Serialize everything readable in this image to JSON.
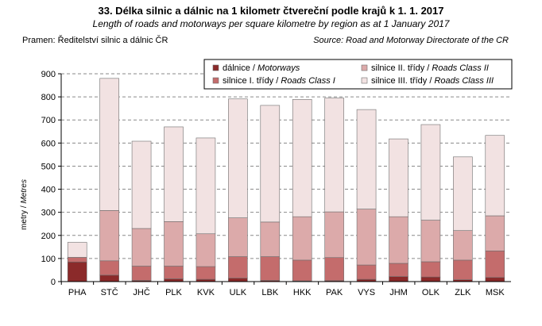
{
  "header": {
    "title": "33. Délka silnic a dálnic na 1 kilometr čtvereční podle krajů k 1. 1. 2017",
    "subtitle": "Length of roads and motorways per square kilometre by region as at 1 January 2017",
    "source_left": "Pramen: Ředitelství silnic a dálnic ČR",
    "source_right": "Source: Road and Motorway Directorate of the CR"
  },
  "chart_data": {
    "type": "bar",
    "stacked": true,
    "categories": [
      "PHA",
      "STČ",
      "JHČ",
      "PLK",
      "KVK",
      "ULK",
      "LBK",
      "HKK",
      "PAK",
      "VYS",
      "JHM",
      "OLK",
      "ZLK",
      "MSK"
    ],
    "series": [
      {
        "name": "dálnice",
        "name_en": "Motorways",
        "color": "#8b2a2a",
        "values": [
          85,
          28,
          5,
          12,
          10,
          15,
          5,
          3,
          4,
          10,
          22,
          20,
          8,
          18
        ]
      },
      {
        "name": "silnice I. třídy",
        "name_en": "Roads Class I",
        "color": "#c46c6c",
        "values": [
          20,
          62,
          62,
          55,
          55,
          93,
          103,
          90,
          100,
          62,
          57,
          66,
          85,
          115
        ]
      },
      {
        "name": "silnice II. třídy",
        "name_en": "Roads Class II",
        "color": "#dcaaaa",
        "values": [
          0,
          218,
          163,
          193,
          142,
          168,
          150,
          188,
          198,
          242,
          202,
          180,
          128,
          152
        ]
      },
      {
        "name": "silnice III. třídy",
        "name_en": "Roads Class III",
        "color": "#f2e2e2",
        "values": [
          65,
          572,
          378,
          410,
          415,
          515,
          505,
          508,
          493,
          431,
          337,
          414,
          319,
          348
        ]
      }
    ],
    "totals": [
      170,
      880,
      608,
      670,
      622,
      791,
      763,
      789,
      795,
      745,
      618,
      680,
      540,
      633
    ],
    "ylabel": "metry",
    "ylabel_en": "Metres",
    "ylim": [
      0,
      900
    ],
    "yticks": [
      0,
      100,
      200,
      300,
      400,
      500,
      600,
      700,
      800,
      900
    ],
    "grid": true,
    "legend_position": "top"
  }
}
